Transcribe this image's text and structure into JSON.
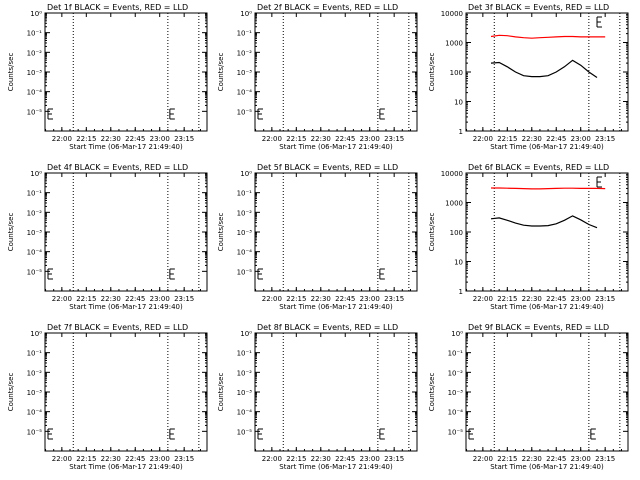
{
  "figure": {
    "xlabel": "Start Time (06-Mar-17 21:49:40)",
    "ylabel": "Counts/sec",
    "x_ticks": [
      "22:00",
      "22:15",
      "22:30",
      "22:45",
      "23:00",
      "23:15"
    ],
    "y_ticks_empty": [
      "10⁰",
      "10⁻¹",
      "10⁻²",
      "10⁻³",
      "10⁻⁴",
      "10⁻⁵"
    ],
    "y_ticks_data": [
      "1",
      "10",
      "100",
      "1000",
      "10000"
    ],
    "colors": {
      "events": "#000000",
      "lld": "#ff0000"
    }
  },
  "chart_data": [
    {
      "type": "line",
      "title": "Det 1f BLACK = Events, RED = LLD",
      "yscale": "log",
      "ylim": [
        1e-06,
        1
      ],
      "x": [],
      "series": []
    },
    {
      "type": "line",
      "title": "Det 2f BLACK = Events, RED = LLD",
      "yscale": "log",
      "ylim": [
        1e-06,
        1
      ],
      "x": [],
      "series": []
    },
    {
      "type": "line",
      "title": "Det 3f BLACK = Events, RED = LLD",
      "yscale": "log",
      "ylim": [
        1,
        10000
      ],
      "x": [
        "22:05",
        "22:10",
        "22:15",
        "22:20",
        "22:25",
        "22:30",
        "22:35",
        "22:40",
        "22:45",
        "22:50",
        "22:55",
        "23:00",
        "23:05",
        "23:10",
        "23:15"
      ],
      "series": [
        {
          "values": [
            1600,
            1750,
            1700,
            1550,
            1450,
            1400,
            1450,
            1500,
            1550,
            1600,
            1600,
            1550,
            1550,
            1550,
            1550
          ],
          "color": "#ff0000"
        },
        {
          "values": [
            200,
            210,
            150,
            100,
            75,
            70,
            70,
            75,
            100,
            150,
            250,
            170,
            100,
            65,
            null
          ],
          "color": "#000000"
        }
      ]
    },
    {
      "type": "line",
      "title": "Det 4f BLACK = Events, RED = LLD",
      "yscale": "log",
      "ylim": [
        1e-06,
        1
      ],
      "x": [],
      "series": []
    },
    {
      "type": "line",
      "title": "Det 5f BLACK = Events, RED = LLD",
      "yscale": "log",
      "ylim": [
        1e-06,
        1
      ],
      "x": [],
      "series": []
    },
    {
      "type": "line",
      "title": "Det 6f BLACK = Events, RED = LLD",
      "yscale": "log",
      "ylim": [
        1,
        10000
      ],
      "x": [
        "22:05",
        "22:10",
        "22:15",
        "22:20",
        "22:25",
        "22:30",
        "22:35",
        "22:40",
        "22:45",
        "22:50",
        "22:55",
        "23:00",
        "23:05",
        "23:10",
        "23:15"
      ],
      "series": [
        {
          "values": [
            3100,
            3100,
            3050,
            3000,
            2950,
            2900,
            2900,
            2950,
            3000,
            3050,
            3050,
            3000,
            3000,
            3000,
            2950
          ],
          "color": "#ff0000"
        },
        {
          "values": [
            280,
            300,
            250,
            200,
            170,
            160,
            160,
            165,
            190,
            250,
            350,
            260,
            180,
            140,
            null
          ],
          "color": "#000000"
        }
      ]
    },
    {
      "type": "line",
      "title": "Det 7f BLACK = Events, RED = LLD",
      "yscale": "log",
      "ylim": [
        1e-06,
        1
      ],
      "x": [],
      "series": []
    },
    {
      "type": "line",
      "title": "Det 8f BLACK = Events, RED = LLD",
      "yscale": "log",
      "ylim": [
        1e-06,
        1
      ],
      "x": [],
      "series": []
    },
    {
      "type": "line",
      "title": "Det 9f BLACK = Events, RED = LLD",
      "yscale": "log",
      "ylim": [
        1e-06,
        1
      ],
      "x": [],
      "series": []
    }
  ]
}
